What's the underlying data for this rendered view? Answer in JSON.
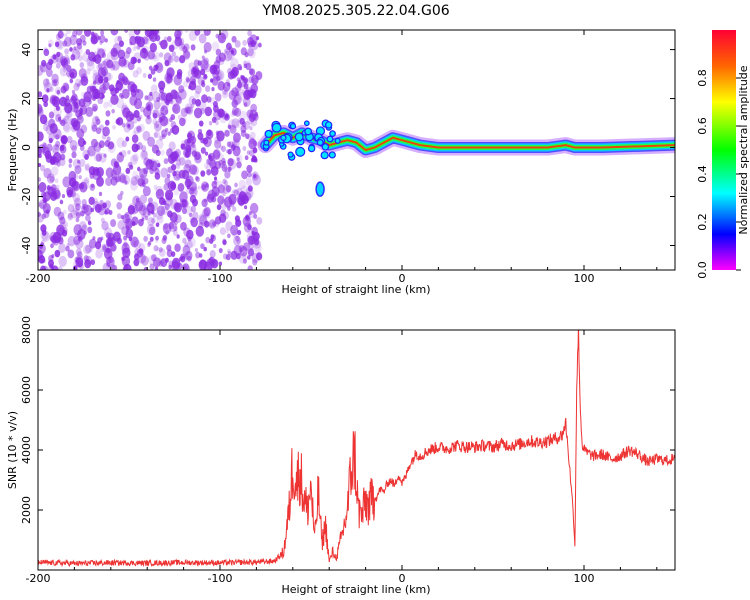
{
  "figure_title": "YM08.2025.305.22.04.G06",
  "chart_data": [
    {
      "type": "heatmap",
      "title": "YM08.2025.305.22.04.G06",
      "xlabel": "Height of straight line (km)",
      "ylabel": "Frequency (Hz)",
      "xlim": [
        -200,
        150
      ],
      "ylim": [
        -50,
        48
      ],
      "xticks": [
        -200,
        -100,
        0,
        100
      ],
      "yticks": [
        -40,
        -20,
        0,
        20,
        40
      ],
      "colorbar": {
        "label": "Normalized spectral amplitude",
        "range": [
          0,
          1
        ],
        "ticks": [
          0.0,
          0.2,
          0.4,
          0.6,
          0.8
        ],
        "colormap": [
          "#ff00ff",
          "#0000ff",
          "#00ffff",
          "#00ff00",
          "#ffff00",
          "#ff0000"
        ]
      },
      "features": {
        "noise_region_x": [
          -200,
          -78
        ],
        "noise_color": "#8a2be2",
        "signal_ridge": [
          [
            -75,
            1
          ],
          [
            -70,
            5
          ],
          [
            -65,
            6
          ],
          [
            -60,
            4
          ],
          [
            -55,
            6
          ],
          [
            -50,
            4
          ],
          [
            -45,
            3
          ],
          [
            -40,
            1
          ],
          [
            -35,
            2
          ],
          [
            -30,
            3
          ],
          [
            -25,
            2
          ],
          [
            -20,
            -1
          ],
          [
            -15,
            0
          ],
          [
            -10,
            2
          ],
          [
            -5,
            4
          ],
          [
            0,
            3
          ],
          [
            10,
            1
          ],
          [
            20,
            0
          ],
          [
            40,
            0
          ],
          [
            60,
            0
          ],
          [
            80,
            0
          ],
          [
            90,
            1
          ],
          [
            95,
            0
          ],
          [
            110,
            0
          ],
          [
            150,
            1
          ]
        ],
        "side_blob": [
          [
            -45,
            -17
          ]
        ]
      }
    },
    {
      "type": "line",
      "xlabel": "Height of straight line (km)",
      "ylabel": "SNR (10 * v/v)",
      "xlim": [
        -200,
        150
      ],
      "ylim": [
        0,
        8000
      ],
      "xticks": [
        -200,
        -100,
        0,
        100
      ],
      "yticks": [
        2000,
        4000,
        6000,
        8000
      ],
      "color": "#ee3333",
      "series": [
        {
          "name": "SNR",
          "x": [
            -200,
            -180,
            -160,
            -140,
            -120,
            -100,
            -80,
            -70,
            -65,
            -62,
            -60,
            -58,
            -56,
            -54,
            -52,
            -50,
            -48,
            -46,
            -44,
            -42,
            -40,
            -38,
            -36,
            -34,
            -32,
            -30,
            -28,
            -26,
            -24,
            -22,
            -20,
            -18,
            -16,
            -14,
            -12,
            -10,
            -8,
            -6,
            -4,
            -2,
            0,
            2,
            4,
            6,
            8,
            10,
            15,
            20,
            25,
            30,
            35,
            40,
            45,
            50,
            55,
            60,
            65,
            70,
            75,
            80,
            85,
            88,
            90,
            92,
            94,
            95,
            96,
            97,
            98,
            99,
            100,
            102,
            105,
            110,
            115,
            120,
            125,
            130,
            135,
            140,
            145,
            150
          ],
          "y": [
            250,
            220,
            240,
            230,
            250,
            240,
            260,
            300,
            600,
            2000,
            3600,
            2900,
            3300,
            2400,
            2000,
            2800,
            1000,
            2600,
            900,
            1500,
            300,
            600,
            400,
            900,
            1400,
            2000,
            3300,
            3900,
            2000,
            1800,
            2300,
            2100,
            2500,
            2400,
            2700,
            2600,
            2900,
            3000,
            2800,
            3200,
            2900,
            3100,
            3500,
            3700,
            3900,
            3800,
            4000,
            4100,
            4050,
            4150,
            4100,
            4100,
            4150,
            4100,
            4200,
            4150,
            4200,
            4300,
            4250,
            4300,
            4400,
            4500,
            4900,
            3500,
            2000,
            800,
            6200,
            8000,
            5300,
            4200,
            4000,
            3900,
            3800,
            3850,
            3700,
            3800,
            4000,
            3850,
            3600,
            3700,
            3650,
            3700
          ]
        }
      ]
    }
  ]
}
